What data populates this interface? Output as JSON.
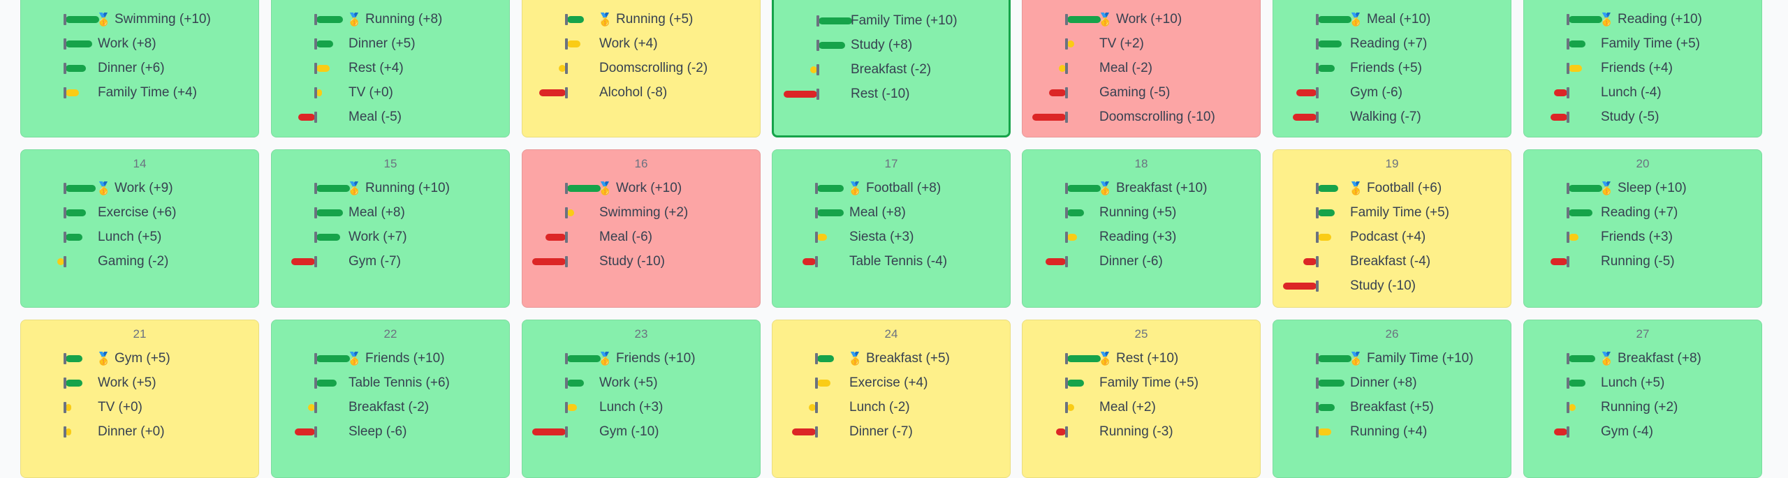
{
  "colors": {
    "good": "#86efac",
    "neutral": "#fef08a",
    "bad": "#fca5a5",
    "bar_positive": "#16a34a",
    "bar_small_positive": "#facc15",
    "bar_negative": "#dc2626",
    "today_border": "#16a34a"
  },
  "medal_icon": "🥇",
  "weeks": [
    [
      {
        "day": "",
        "status": "good",
        "activities": [
          {
            "name": "Swimming",
            "score": 10,
            "label": "Swimming (+10)",
            "top": true
          },
          {
            "name": "Work",
            "score": 8,
            "label": "Work (+8)"
          },
          {
            "name": "Dinner",
            "score": 6,
            "label": "Dinner (+6)"
          },
          {
            "name": "Family Time",
            "score": 4,
            "label": "Family Time (+4)"
          }
        ]
      },
      {
        "day": "",
        "status": "good",
        "activities": [
          {
            "name": "Running",
            "score": 8,
            "label": "Running (+8)",
            "top": true
          },
          {
            "name": "Dinner",
            "score": 5,
            "label": "Dinner (+5)"
          },
          {
            "name": "Rest",
            "score": 4,
            "label": "Rest (+4)"
          },
          {
            "name": "TV",
            "score": 0,
            "label": "TV (+0)"
          },
          {
            "name": "Meal",
            "score": -5,
            "label": "Meal (-5)"
          }
        ]
      },
      {
        "day": "",
        "status": "neutral",
        "activities": [
          {
            "name": "Running",
            "score": 5,
            "label": "Running (+5)",
            "top": true
          },
          {
            "name": "Work",
            "score": 4,
            "label": "Work (+4)"
          },
          {
            "name": "Doomscrolling",
            "score": -2,
            "label": "Doomscrolling (-2)"
          },
          {
            "name": "Alcohol",
            "score": -8,
            "label": "Alcohol (-8)"
          }
        ]
      },
      {
        "day": "",
        "status": "good",
        "today": true,
        "activities": [
          {
            "name": "Family Time",
            "score": 10,
            "label": "Family Time (+10)"
          },
          {
            "name": "Study",
            "score": 8,
            "label": "Study (+8)"
          },
          {
            "name": "Breakfast",
            "score": -2,
            "label": "Breakfast (-2)"
          },
          {
            "name": "Rest",
            "score": -10,
            "label": "Rest (-10)"
          }
        ]
      },
      {
        "day": "",
        "status": "bad",
        "activities": [
          {
            "name": "Work",
            "score": 10,
            "label": "Work (+10)",
            "top": true
          },
          {
            "name": "TV",
            "score": 2,
            "label": "TV (+2)"
          },
          {
            "name": "Meal",
            "score": -2,
            "label": "Meal (-2)"
          },
          {
            "name": "Gaming",
            "score": -5,
            "label": "Gaming (-5)"
          },
          {
            "name": "Doomscrolling",
            "score": -10,
            "label": "Doomscrolling (-10)"
          }
        ]
      },
      {
        "day": "",
        "status": "good",
        "activities": [
          {
            "name": "Meal",
            "score": 10,
            "label": "Meal (+10)",
            "top": true
          },
          {
            "name": "Reading",
            "score": 7,
            "label": "Reading (+7)"
          },
          {
            "name": "Friends",
            "score": 5,
            "label": "Friends (+5)"
          },
          {
            "name": "Gym",
            "score": -6,
            "label": "Gym (-6)"
          },
          {
            "name": "Walking",
            "score": -7,
            "label": "Walking (-7)"
          }
        ]
      },
      {
        "day": "",
        "status": "good",
        "activities": [
          {
            "name": "Reading",
            "score": 10,
            "label": "Reading (+10)",
            "top": true
          },
          {
            "name": "Family Time",
            "score": 5,
            "label": "Family Time (+5)"
          },
          {
            "name": "Friends",
            "score": 4,
            "label": "Friends (+4)"
          },
          {
            "name": "Lunch",
            "score": -4,
            "label": "Lunch (-4)"
          },
          {
            "name": "Study",
            "score": -5,
            "label": "Study (-5)"
          }
        ]
      }
    ],
    [
      {
        "day": "14",
        "status": "good",
        "activities": [
          {
            "name": "Work",
            "score": 9,
            "label": "Work (+9)",
            "top": true
          },
          {
            "name": "Exercise",
            "score": 6,
            "label": "Exercise (+6)"
          },
          {
            "name": "Lunch",
            "score": 5,
            "label": "Lunch (+5)"
          },
          {
            "name": "Gaming",
            "score": -2,
            "label": "Gaming (-2)"
          }
        ]
      },
      {
        "day": "15",
        "status": "good",
        "activities": [
          {
            "name": "Running",
            "score": 10,
            "label": "Running (+10)",
            "top": true
          },
          {
            "name": "Meal",
            "score": 8,
            "label": "Meal (+8)"
          },
          {
            "name": "Work",
            "score": 7,
            "label": "Work (+7)"
          },
          {
            "name": "Gym",
            "score": -7,
            "label": "Gym (-7)"
          }
        ]
      },
      {
        "day": "16",
        "status": "bad",
        "activities": [
          {
            "name": "Work",
            "score": 10,
            "label": "Work (+10)",
            "top": true
          },
          {
            "name": "Swimming",
            "score": 2,
            "label": "Swimming (+2)"
          },
          {
            "name": "Meal",
            "score": -6,
            "label": "Meal (-6)"
          },
          {
            "name": "Study",
            "score": -10,
            "label": "Study (-10)"
          }
        ]
      },
      {
        "day": "17",
        "status": "good",
        "activities": [
          {
            "name": "Football",
            "score": 8,
            "label": "Football (+8)",
            "top": true
          },
          {
            "name": "Meal",
            "score": 8,
            "label": "Meal (+8)"
          },
          {
            "name": "Siesta",
            "score": 3,
            "label": "Siesta (+3)"
          },
          {
            "name": "Table Tennis",
            "score": -4,
            "label": "Table Tennis (-4)"
          }
        ]
      },
      {
        "day": "18",
        "status": "good",
        "activities": [
          {
            "name": "Breakfast",
            "score": 10,
            "label": "Breakfast (+10)",
            "top": true
          },
          {
            "name": "Running",
            "score": 5,
            "label": "Running (+5)"
          },
          {
            "name": "Reading",
            "score": 3,
            "label": "Reading (+3)"
          },
          {
            "name": "Dinner",
            "score": -6,
            "label": "Dinner (-6)"
          }
        ]
      },
      {
        "day": "19",
        "status": "neutral",
        "activities": [
          {
            "name": "Football",
            "score": 6,
            "label": "Football (+6)",
            "top": true
          },
          {
            "name": "Family Time",
            "score": 5,
            "label": "Family Time (+5)"
          },
          {
            "name": "Podcast",
            "score": 4,
            "label": "Podcast (+4)"
          },
          {
            "name": "Breakfast",
            "score": -4,
            "label": "Breakfast (-4)"
          },
          {
            "name": "Study",
            "score": -10,
            "label": "Study (-10)"
          }
        ]
      },
      {
        "day": "20",
        "status": "good",
        "activities": [
          {
            "name": "Sleep",
            "score": 10,
            "label": "Sleep (+10)",
            "top": true
          },
          {
            "name": "Reading",
            "score": 7,
            "label": "Reading (+7)"
          },
          {
            "name": "Friends",
            "score": 3,
            "label": "Friends (+3)"
          },
          {
            "name": "Running",
            "score": -5,
            "label": "Running (-5)"
          }
        ]
      }
    ],
    [
      {
        "day": "21",
        "status": "neutral",
        "activities": [
          {
            "name": "Gym",
            "score": 5,
            "label": "Gym (+5)",
            "top": true
          },
          {
            "name": "Work",
            "score": 5,
            "label": "Work (+5)"
          },
          {
            "name": "TV",
            "score": 0,
            "label": "TV (+0)"
          },
          {
            "name": "Dinner",
            "score": 0,
            "label": "Dinner (+0)"
          }
        ]
      },
      {
        "day": "22",
        "status": "good",
        "activities": [
          {
            "name": "Friends",
            "score": 10,
            "label": "Friends (+10)",
            "top": true
          },
          {
            "name": "Table Tennis",
            "score": 6,
            "label": "Table Tennis (+6)"
          },
          {
            "name": "Breakfast",
            "score": -2,
            "label": "Breakfast (-2)"
          },
          {
            "name": "Sleep",
            "score": -6,
            "label": "Sleep (-6)"
          }
        ]
      },
      {
        "day": "23",
        "status": "good",
        "activities": [
          {
            "name": "Friends",
            "score": 10,
            "label": "Friends (+10)",
            "top": true
          },
          {
            "name": "Work",
            "score": 5,
            "label": "Work (+5)"
          },
          {
            "name": "Lunch",
            "score": 3,
            "label": "Lunch (+3)"
          },
          {
            "name": "Gym",
            "score": -10,
            "label": "Gym (-10)"
          }
        ]
      },
      {
        "day": "24",
        "status": "neutral",
        "activities": [
          {
            "name": "Breakfast",
            "score": 5,
            "label": "Breakfast (+5)",
            "top": true
          },
          {
            "name": "Exercise",
            "score": 4,
            "label": "Exercise (+4)"
          },
          {
            "name": "Lunch",
            "score": -2,
            "label": "Lunch (-2)"
          },
          {
            "name": "Dinner",
            "score": -7,
            "label": "Dinner (-7)"
          }
        ]
      },
      {
        "day": "25",
        "status": "neutral",
        "activities": [
          {
            "name": "Rest",
            "score": 10,
            "label": "Rest (+10)",
            "top": true
          },
          {
            "name": "Family Time",
            "score": 5,
            "label": "Family Time (+5)"
          },
          {
            "name": "Meal",
            "score": 2,
            "label": "Meal (+2)"
          },
          {
            "name": "Running",
            "score": -3,
            "label": "Running (-3)"
          }
        ]
      },
      {
        "day": "26",
        "status": "good",
        "activities": [
          {
            "name": "Family Time",
            "score": 10,
            "label": "Family Time (+10)",
            "top": true
          },
          {
            "name": "Dinner",
            "score": 8,
            "label": "Dinner (+8)"
          },
          {
            "name": "Breakfast",
            "score": 5,
            "label": "Breakfast (+5)"
          },
          {
            "name": "Running",
            "score": 4,
            "label": "Running (+4)"
          }
        ]
      },
      {
        "day": "27",
        "status": "good",
        "activities": [
          {
            "name": "Breakfast",
            "score": 8,
            "label": "Breakfast (+8)",
            "top": true
          },
          {
            "name": "Lunch",
            "score": 5,
            "label": "Lunch (+5)"
          },
          {
            "name": "Running",
            "score": 2,
            "label": "Running (+2)"
          },
          {
            "name": "Gym",
            "score": -4,
            "label": "Gym (-4)"
          }
        ]
      }
    ]
  ]
}
